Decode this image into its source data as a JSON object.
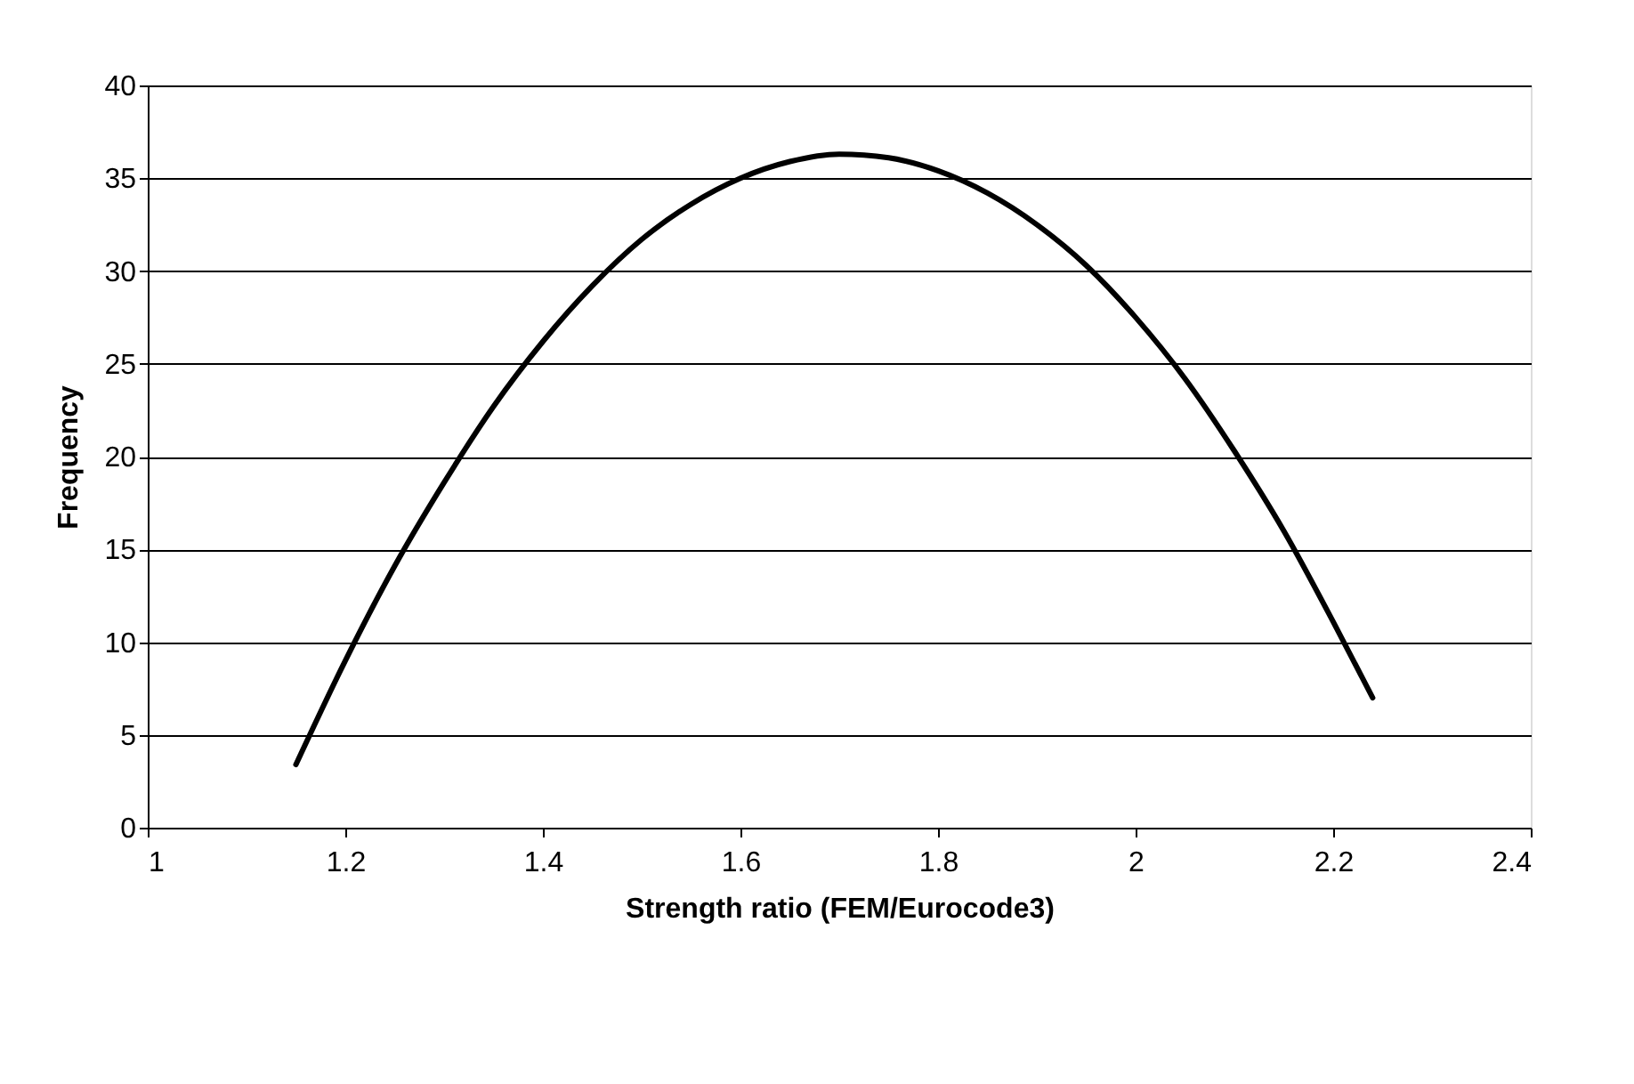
{
  "chart_data": {
    "type": "line",
    "xlabel": "Strength ratio (FEM/Eurocode3)",
    "ylabel": "Frequency",
    "x": [
      1.15,
      1.2,
      1.25,
      1.3,
      1.35,
      1.4,
      1.45,
      1.5,
      1.55,
      1.6,
      1.65,
      1.7,
      1.75,
      1.8,
      1.85,
      1.9,
      1.95,
      2.0,
      2.05,
      2.1,
      2.15,
      2.2,
      2.24
    ],
    "series": [
      {
        "color": "#000000",
        "values": [
          3.4,
          9.0,
          14.1,
          18.6,
          22.7,
          26.2,
          29.2,
          31.7,
          33.6,
          35.0,
          35.9,
          36.3,
          36.1,
          35.4,
          34.2,
          32.5,
          30.3,
          27.5,
          24.2,
          20.3,
          16.0,
          11.1,
          7.0
        ]
      }
    ],
    "xlim": [
      1,
      2.4
    ],
    "xticks": [
      1,
      1.2,
      1.4,
      1.6,
      1.8,
      2,
      2.2,
      2.4
    ],
    "ylim": [
      0,
      40
    ],
    "yticks": [
      0,
      5,
      10,
      15,
      20,
      25,
      30,
      35,
      40
    ],
    "grid": "y",
    "marker": "none",
    "line_style": "solid"
  }
}
